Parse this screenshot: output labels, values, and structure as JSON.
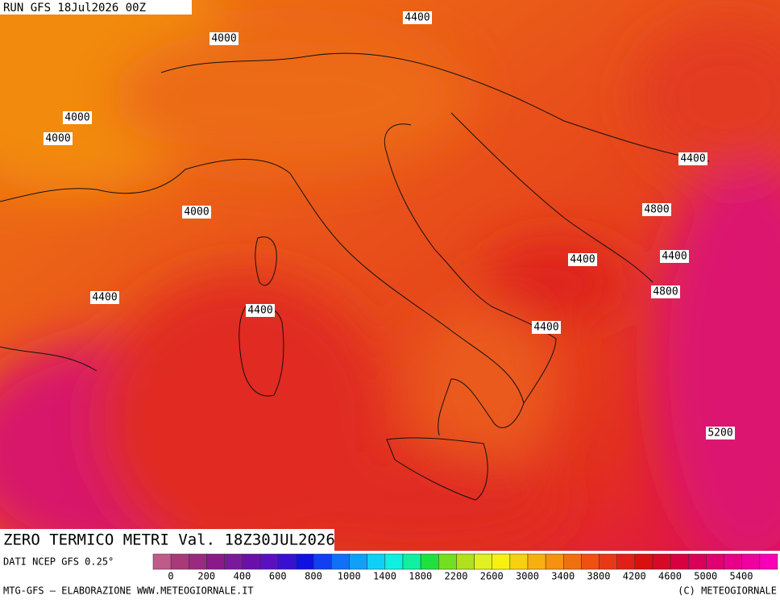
{
  "header": {
    "run": "RUN GFS 18Jul2026 00Z"
  },
  "map": {
    "contour_labels": [
      "4400",
      "4000",
      "4000",
      "4000",
      "4400",
      "4800",
      "4000",
      "4400",
      "4400",
      "4800",
      "4400",
      "4400",
      "4400",
      "5200"
    ]
  },
  "title": "ZERO TERMICO METRI Val. 18Z30JUL2026",
  "source": "DATI NCEP GFS 0.25°",
  "colorbar": {
    "labels": [
      "0",
      "200",
      "400",
      "600",
      "800",
      "1000",
      "1400",
      "1800",
      "2200",
      "2600",
      "3000",
      "3400",
      "3800",
      "4200",
      "4600",
      "5000",
      "5400"
    ]
  },
  "footer": {
    "left": "MTG-GFS – ELABORAZIONE WWW.METEOGIORNALE.IT",
    "right": "(C) METEOGIORNALE"
  }
}
